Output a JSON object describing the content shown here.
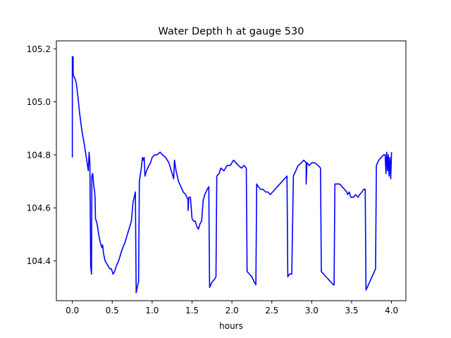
{
  "chart_data": {
    "type": "line",
    "title": "Water Depth h at gauge 530",
    "xlabel": "hours",
    "ylabel": "",
    "xlim": [
      -0.2,
      4.18
    ],
    "ylim": [
      104.25,
      105.23
    ],
    "x_ticks": [
      0.0,
      0.5,
      1.0,
      1.5,
      2.0,
      2.5,
      3.0,
      3.5,
      4.0
    ],
    "x_tick_labels": [
      "0.0",
      "0.5",
      "1.0",
      "1.5",
      "2.0",
      "2.5",
      "3.0",
      "3.5",
      "4.0"
    ],
    "y_ticks": [
      104.4,
      104.6,
      104.8,
      105.0,
      105.2
    ],
    "y_tick_labels": [
      "104.4",
      "104.6",
      "104.8",
      "105.0",
      "105.2"
    ],
    "grid": false,
    "series": [
      {
        "color": "#0000ff",
        "points": [
          [
            0.0,
            104.79
          ],
          [
            0.0,
            105.17
          ],
          [
            0.0,
            105.1
          ],
          [
            0.01,
            105.17
          ],
          [
            0.01,
            105.1
          ],
          [
            0.03,
            105.09
          ],
          [
            0.05,
            105.07
          ],
          [
            0.07,
            105.02
          ],
          [
            0.09,
            104.96
          ],
          [
            0.12,
            104.89
          ],
          [
            0.15,
            104.84
          ],
          [
            0.18,
            104.78
          ],
          [
            0.2,
            104.74
          ],
          [
            0.21,
            104.81
          ],
          [
            0.22,
            104.77
          ],
          [
            0.23,
            104.38
          ],
          [
            0.24,
            104.35
          ],
          [
            0.245,
            104.72
          ],
          [
            0.255,
            104.73
          ],
          [
            0.27,
            104.68
          ],
          [
            0.28,
            104.66
          ],
          [
            0.285,
            104.64
          ],
          [
            0.29,
            104.56
          ],
          [
            0.31,
            104.54
          ],
          [
            0.33,
            104.5
          ],
          [
            0.35,
            104.47
          ],
          [
            0.37,
            104.45
          ],
          [
            0.38,
            104.46
          ],
          [
            0.39,
            104.43
          ],
          [
            0.41,
            104.4
          ],
          [
            0.43,
            104.39
          ],
          [
            0.45,
            104.38
          ],
          [
            0.47,
            104.37
          ],
          [
            0.49,
            104.37
          ],
          [
            0.51,
            104.35
          ],
          [
            0.53,
            104.36
          ],
          [
            0.55,
            104.38
          ],
          [
            0.58,
            104.4
          ],
          [
            0.62,
            104.44
          ],
          [
            0.66,
            104.47
          ],
          [
            0.7,
            104.51
          ],
          [
            0.74,
            104.55
          ],
          [
            0.76,
            104.62
          ],
          [
            0.79,
            104.66
          ],
          [
            0.8,
            104.28
          ],
          [
            0.82,
            104.31
          ],
          [
            0.83,
            104.32
          ],
          [
            0.84,
            104.7
          ],
          [
            0.86,
            104.74
          ],
          [
            0.88,
            104.79
          ],
          [
            0.89,
            104.78
          ],
          [
            0.9,
            104.79
          ],
          [
            0.91,
            104.72
          ],
          [
            0.93,
            104.74
          ],
          [
            0.96,
            104.76
          ],
          [
            0.98,
            104.77
          ],
          [
            1.0,
            104.79
          ],
          [
            1.03,
            104.8
          ],
          [
            1.06,
            104.8
          ],
          [
            1.1,
            104.81
          ],
          [
            1.13,
            104.8
          ],
          [
            1.17,
            104.79
          ],
          [
            1.21,
            104.77
          ],
          [
            1.24,
            104.74
          ],
          [
            1.27,
            104.71
          ],
          [
            1.28,
            104.78
          ],
          [
            1.3,
            104.74
          ],
          [
            1.33,
            104.7
          ],
          [
            1.36,
            104.68
          ],
          [
            1.39,
            104.66
          ],
          [
            1.42,
            104.65
          ],
          [
            1.45,
            104.63
          ],
          [
            1.45,
            104.59
          ],
          [
            1.46,
            104.64
          ],
          [
            1.48,
            104.64
          ],
          [
            1.5,
            104.56
          ],
          [
            1.52,
            104.55
          ],
          [
            1.54,
            104.55
          ],
          [
            1.56,
            104.53
          ],
          [
            1.58,
            104.52
          ],
          [
            1.6,
            104.54
          ],
          [
            1.62,
            104.55
          ],
          [
            1.64,
            104.63
          ],
          [
            1.66,
            104.65
          ],
          [
            1.69,
            104.67
          ],
          [
            1.71,
            104.68
          ],
          [
            1.72,
            104.3
          ],
          [
            1.75,
            104.32
          ],
          [
            1.78,
            104.33
          ],
          [
            1.8,
            104.34
          ],
          [
            1.81,
            104.72
          ],
          [
            1.84,
            104.73
          ],
          [
            1.86,
            104.75
          ],
          [
            1.9,
            104.74
          ],
          [
            1.94,
            104.76
          ],
          [
            1.98,
            104.76
          ],
          [
            2.02,
            104.78
          ],
          [
            2.05,
            104.77
          ],
          [
            2.08,
            104.76
          ],
          [
            2.12,
            104.75
          ],
          [
            2.15,
            104.76
          ],
          [
            2.18,
            104.75
          ],
          [
            2.19,
            104.36
          ],
          [
            2.22,
            104.35
          ],
          [
            2.25,
            104.34
          ],
          [
            2.28,
            104.32
          ],
          [
            2.3,
            104.31
          ],
          [
            2.31,
            104.69
          ],
          [
            2.33,
            104.68
          ],
          [
            2.36,
            104.67
          ],
          [
            2.39,
            104.67
          ],
          [
            2.42,
            104.66
          ],
          [
            2.45,
            104.66
          ],
          [
            2.48,
            104.65
          ],
          [
            2.51,
            104.66
          ],
          [
            2.54,
            104.67
          ],
          [
            2.57,
            104.68
          ],
          [
            2.6,
            104.69
          ],
          [
            2.63,
            104.7
          ],
          [
            2.66,
            104.71
          ],
          [
            2.69,
            104.72
          ],
          [
            2.7,
            104.34
          ],
          [
            2.72,
            104.35
          ],
          [
            2.75,
            104.35
          ],
          [
            2.77,
            104.72
          ],
          [
            2.8,
            104.74
          ],
          [
            2.83,
            104.76
          ],
          [
            2.87,
            104.77
          ],
          [
            2.9,
            104.78
          ],
          [
            2.93,
            104.77
          ],
          [
            2.93,
            104.69
          ],
          [
            2.94,
            104.77
          ],
          [
            2.97,
            104.76
          ],
          [
            3.0,
            104.77
          ],
          [
            3.04,
            104.77
          ],
          [
            3.08,
            104.76
          ],
          [
            3.11,
            104.75
          ],
          [
            3.12,
            104.36
          ],
          [
            3.15,
            104.35
          ],
          [
            3.18,
            104.34
          ],
          [
            3.21,
            104.33
          ],
          [
            3.24,
            104.32
          ],
          [
            3.27,
            104.31
          ],
          [
            3.28,
            104.31
          ],
          [
            3.29,
            104.69
          ],
          [
            3.32,
            104.69
          ],
          [
            3.35,
            104.69
          ],
          [
            3.38,
            104.68
          ],
          [
            3.41,
            104.67
          ],
          [
            3.44,
            104.66
          ],
          [
            3.45,
            104.65
          ],
          [
            3.47,
            104.66
          ],
          [
            3.49,
            104.64
          ],
          [
            3.52,
            104.64
          ],
          [
            3.55,
            104.65
          ],
          [
            3.58,
            104.64
          ],
          [
            3.6,
            104.65
          ],
          [
            3.63,
            104.66
          ],
          [
            3.65,
            104.67
          ],
          [
            3.67,
            104.67
          ],
          [
            3.68,
            104.29
          ],
          [
            3.71,
            104.31
          ],
          [
            3.74,
            104.33
          ],
          [
            3.77,
            104.35
          ],
          [
            3.8,
            104.37
          ],
          [
            3.81,
            104.76
          ],
          [
            3.84,
            104.78
          ],
          [
            3.87,
            104.79
          ],
          [
            3.9,
            104.8
          ],
          [
            3.92,
            104.8
          ],
          [
            3.93,
            104.73
          ],
          [
            3.94,
            104.81
          ],
          [
            3.95,
            104.74
          ],
          [
            3.96,
            104.8
          ],
          [
            3.97,
            104.72
          ],
          [
            3.98,
            104.79
          ],
          [
            3.99,
            104.71
          ],
          [
            4.0,
            104.81
          ]
        ]
      }
    ]
  }
}
